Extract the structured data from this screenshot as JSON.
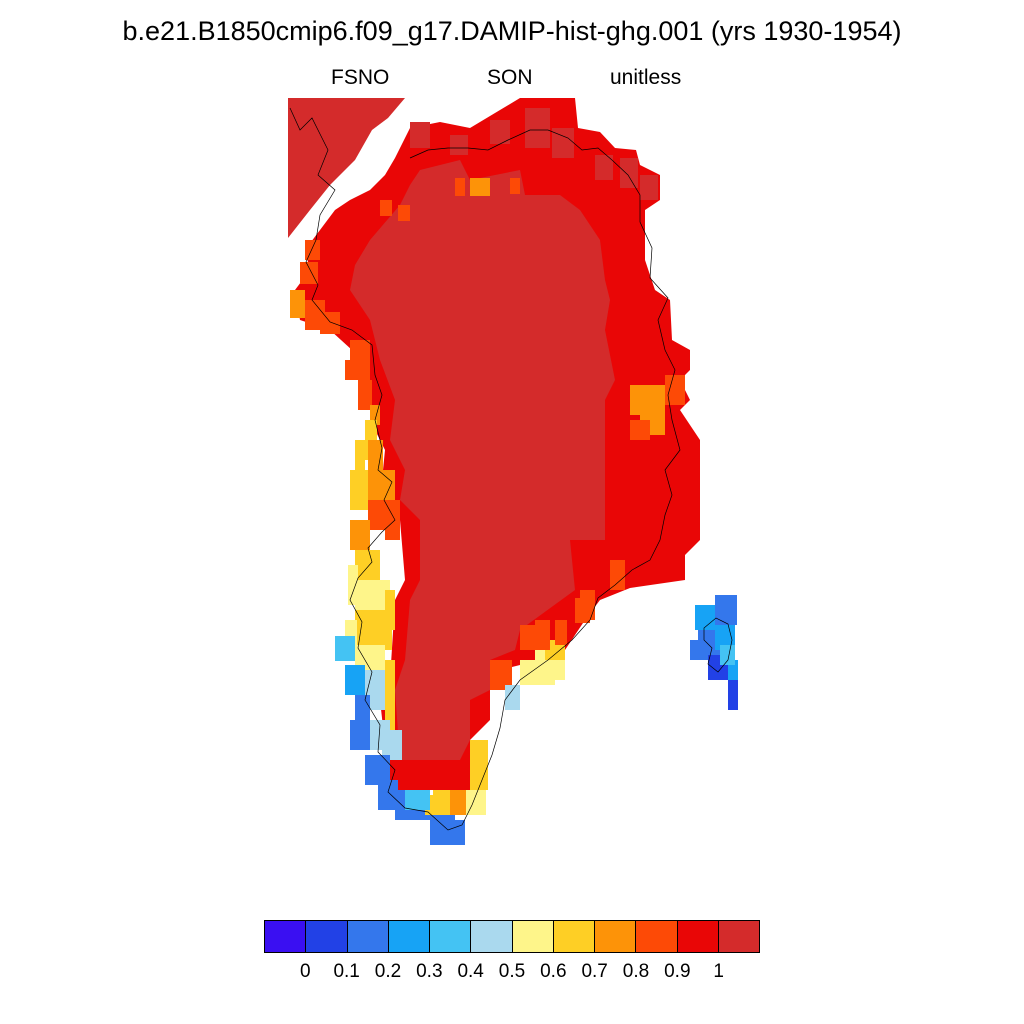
{
  "title": "b.e21.B1850cmip6.f09_g17.DAMIP-hist-ghg.001 (yrs 1930-1954)",
  "subtitle": {
    "left": "FSNO",
    "center": "SON",
    "right": "unitless"
  },
  "colorbar": {
    "colors": [
      "#3a0ff2",
      "#2241e6",
      "#3477ec",
      "#17a3f5",
      "#44c3f3",
      "#aad9ee",
      "#fef58a",
      "#fecf25",
      "#fd9308",
      "#fd4a06",
      "#e90606",
      "#d42b2b"
    ],
    "labels": [
      "0",
      "0.1",
      "0.2",
      "0.3",
      "0.4",
      "0.5",
      "0.6",
      "0.7",
      "0.8",
      "0.9",
      "1"
    ]
  },
  "chart_data": {
    "type": "heatmap",
    "variable": "FSNO",
    "season": "SON",
    "units": "unitless",
    "value_range": [
      0,
      1
    ],
    "regions": [
      {
        "region": "Greenland ice sheet interior",
        "value": 1.0
      },
      {
        "region": "Greenland northern and eastern margins",
        "value": 0.95
      },
      {
        "region": "Greenland central-east coast",
        "value": 0.85
      },
      {
        "region": "Greenland central-west coast",
        "value": 0.75
      },
      {
        "region": "Greenland southwest coast",
        "value": 0.55
      },
      {
        "region": "Greenland southern tip",
        "value": 0.3
      },
      {
        "region": "Iceland",
        "value": 0.25
      }
    ]
  }
}
